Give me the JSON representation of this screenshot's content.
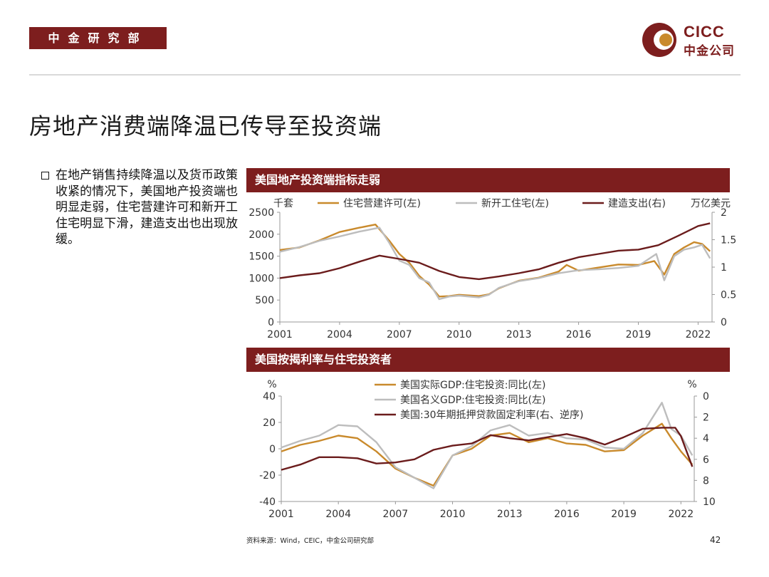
{
  "header": {
    "dept_label": "中金研究部",
    "brand_en": "CICC",
    "brand_cn": "中金公司"
  },
  "slide": {
    "title": "房地产消费端降温已传导至投资端",
    "bullet": "在地产销售持续降温以及货币政策收紧的情况下，美国地产投资端也明显走弱，住宅营建许可和新开工住宅明显下滑，建造支出也出现放缓。",
    "source": "资料来源：Wind，CEIC，中金公司研究部",
    "page": "42"
  },
  "colors": {
    "brand": "#7d1e1e",
    "gold": "#c98a2c",
    "gray": "#bdbdbd",
    "maroon": "#6b1c1c"
  },
  "chart_data": [
    {
      "type": "line",
      "title": "美国地产投资端指标走弱",
      "left_unit": "千套",
      "right_unit": "万亿美元",
      "x_ticks": [
        "2001",
        "2004",
        "2007",
        "2010",
        "2013",
        "2016",
        "2019",
        "2022"
      ],
      "xlim": [
        2001,
        2022.7
      ],
      "ylim_left": [
        0,
        2500
      ],
      "y_ticks_left": [
        "0",
        "500",
        "1000",
        "1500",
        "2000",
        "2500"
      ],
      "ylim_right": [
        0,
        2
      ],
      "y_ticks_right": [
        "0",
        "0.5",
        "1",
        "1.5",
        "2"
      ],
      "series": [
        {
          "name": "住宅营建许可(左)",
          "axis": "left",
          "color": "#c98a2c",
          "points": [
            [
              2001,
              1640
            ],
            [
              2002,
              1700
            ],
            [
              2003,
              1860
            ],
            [
              2004,
              2050
            ],
            [
              2005,
              2150
            ],
            [
              2005.8,
              2220
            ],
            [
              2006.5,
              1850
            ],
            [
              2007,
              1550
            ],
            [
              2007.5,
              1350
            ],
            [
              2008,
              1050
            ],
            [
              2008.5,
              850
            ],
            [
              2009,
              580
            ],
            [
              2009.5,
              590
            ],
            [
              2010,
              620
            ],
            [
              2011,
              590
            ],
            [
              2011.5,
              630
            ],
            [
              2012,
              770
            ],
            [
              2013,
              940
            ],
            [
              2014,
              1010
            ],
            [
              2015,
              1150
            ],
            [
              2015.4,
              1300
            ],
            [
              2016,
              1170
            ],
            [
              2017,
              1240
            ],
            [
              2018,
              1310
            ],
            [
              2019,
              1300
            ],
            [
              2019.8,
              1390
            ],
            [
              2020.3,
              1080
            ],
            [
              2020.8,
              1550
            ],
            [
              2021.3,
              1700
            ],
            [
              2021.8,
              1820
            ],
            [
              2022.2,
              1780
            ],
            [
              2022.6,
              1610
            ]
          ]
        },
        {
          "name": "新开工住宅(左)",
          "axis": "left",
          "color": "#bdbdbd",
          "points": [
            [
              2001,
              1600
            ],
            [
              2002,
              1710
            ],
            [
              2003,
              1850
            ],
            [
              2004,
              1950
            ],
            [
              2005,
              2060
            ],
            [
              2006,
              2150
            ],
            [
              2006.5,
              1800
            ],
            [
              2007,
              1400
            ],
            [
              2007.5,
              1300
            ],
            [
              2008,
              1000
            ],
            [
              2008.5,
              900
            ],
            [
              2009,
              520
            ],
            [
              2009.5,
              580
            ],
            [
              2010,
              600
            ],
            [
              2011,
              560
            ],
            [
              2011.5,
              620
            ],
            [
              2012,
              780
            ],
            [
              2013,
              930
            ],
            [
              2014,
              1000
            ],
            [
              2015,
              1110
            ],
            [
              2016,
              1180
            ],
            [
              2017,
              1200
            ],
            [
              2018,
              1230
            ],
            [
              2019,
              1280
            ],
            [
              2019.9,
              1550
            ],
            [
              2020.3,
              950
            ],
            [
              2020.8,
              1500
            ],
            [
              2021.3,
              1650
            ],
            [
              2021.8,
              1700
            ],
            [
              2022.2,
              1760
            ],
            [
              2022.6,
              1450
            ]
          ]
        },
        {
          "name": "建造支出(右)",
          "axis": "right",
          "color": "#6b1c1c",
          "points": [
            [
              2001,
              0.8
            ],
            [
              2002,
              0.85
            ],
            [
              2003,
              0.89
            ],
            [
              2004,
              0.98
            ],
            [
              2005,
              1.1
            ],
            [
              2006,
              1.21
            ],
            [
              2007,
              1.15
            ],
            [
              2008,
              1.08
            ],
            [
              2009,
              0.93
            ],
            [
              2010,
              0.82
            ],
            [
              2011,
              0.78
            ],
            [
              2012,
              0.83
            ],
            [
              2013,
              0.89
            ],
            [
              2014,
              0.96
            ],
            [
              2015,
              1.08
            ],
            [
              2016,
              1.18
            ],
            [
              2017,
              1.24
            ],
            [
              2018,
              1.3
            ],
            [
              2019,
              1.32
            ],
            [
              2020,
              1.4
            ],
            [
              2021,
              1.57
            ],
            [
              2022,
              1.75
            ],
            [
              2022.6,
              1.8
            ]
          ]
        }
      ]
    },
    {
      "type": "line",
      "title": "美国按揭利率与住宅投资者",
      "left_unit": "%",
      "right_unit": "%",
      "x_ticks": [
        "2001",
        "2004",
        "2007",
        "2010",
        "2013",
        "2016",
        "2019",
        "2022"
      ],
      "xlim": [
        2001,
        2022.7
      ],
      "ylim_left": [
        -40,
        40
      ],
      "y_ticks_left": [
        "-40",
        "-20",
        "0",
        "20",
        "40"
      ],
      "ylim_right": [
        10,
        0
      ],
      "y_ticks_right": [
        "0",
        "2",
        "4",
        "6",
        "8",
        "10"
      ],
      "series": [
        {
          "name": "美国实际GDP:住宅投资:同比(左)",
          "axis": "left",
          "color": "#c98a2c",
          "points": [
            [
              2001,
              -2
            ],
            [
              2002,
              3
            ],
            [
              2003,
              6
            ],
            [
              2004,
              10
            ],
            [
              2005,
              8
            ],
            [
              2006,
              -2
            ],
            [
              2007,
              -15
            ],
            [
              2008,
              -22
            ],
            [
              2009,
              -28
            ],
            [
              2010,
              -5
            ],
            [
              2011,
              0
            ],
            [
              2012,
              10
            ],
            [
              2013,
              12
            ],
            [
              2014,
              5
            ],
            [
              2015,
              8
            ],
            [
              2016,
              4
            ],
            [
              2017,
              3
            ],
            [
              2018,
              -2
            ],
            [
              2019,
              -1
            ],
            [
              2020,
              10
            ],
            [
              2021,
              19
            ],
            [
              2021.5,
              8
            ],
            [
              2022,
              -2
            ],
            [
              2022.6,
              -12
            ]
          ]
        },
        {
          "name": "美国名义GDP:住宅投资:同比(左)",
          "axis": "left",
          "color": "#bdbdbd",
          "points": [
            [
              2001,
              1
            ],
            [
              2002,
              6
            ],
            [
              2003,
              10
            ],
            [
              2004,
              18
            ],
            [
              2005,
              17
            ],
            [
              2006,
              5
            ],
            [
              2007,
              -14
            ],
            [
              2008,
              -22
            ],
            [
              2009,
              -30
            ],
            [
              2010,
              -5
            ],
            [
              2011,
              2
            ],
            [
              2012,
              14
            ],
            [
              2013,
              18
            ],
            [
              2014,
              10
            ],
            [
              2015,
              12
            ],
            [
              2016,
              8
            ],
            [
              2017,
              7
            ],
            [
              2018,
              1
            ],
            [
              2019,
              0
            ],
            [
              2020,
              12
            ],
            [
              2021,
              35
            ],
            [
              2021.5,
              15
            ],
            [
              2022,
              10
            ],
            [
              2022.6,
              -5
            ]
          ]
        },
        {
          "name": "美国:30年期抵押贷款固定利率(右、逆序)",
          "axis": "right",
          "color": "#6b1c1c",
          "points": [
            [
              2001,
              7.0
            ],
            [
              2002,
              6.5
            ],
            [
              2003,
              5.8
            ],
            [
              2004,
              5.8
            ],
            [
              2005,
              5.9
            ],
            [
              2006,
              6.4
            ],
            [
              2007,
              6.3
            ],
            [
              2008,
              6.0
            ],
            [
              2009,
              5.1
            ],
            [
              2010,
              4.7
            ],
            [
              2011,
              4.5
            ],
            [
              2012,
              3.7
            ],
            [
              2013,
              4.0
            ],
            [
              2014,
              4.2
            ],
            [
              2015,
              3.9
            ],
            [
              2016,
              3.6
            ],
            [
              2017,
              4.0
            ],
            [
              2018,
              4.6
            ],
            [
              2019,
              3.9
            ],
            [
              2020,
              3.1
            ],
            [
              2021,
              3.0
            ],
            [
              2021.7,
              3.0
            ],
            [
              2022,
              3.8
            ],
            [
              2022.6,
              6.7
            ]
          ]
        }
      ]
    }
  ]
}
